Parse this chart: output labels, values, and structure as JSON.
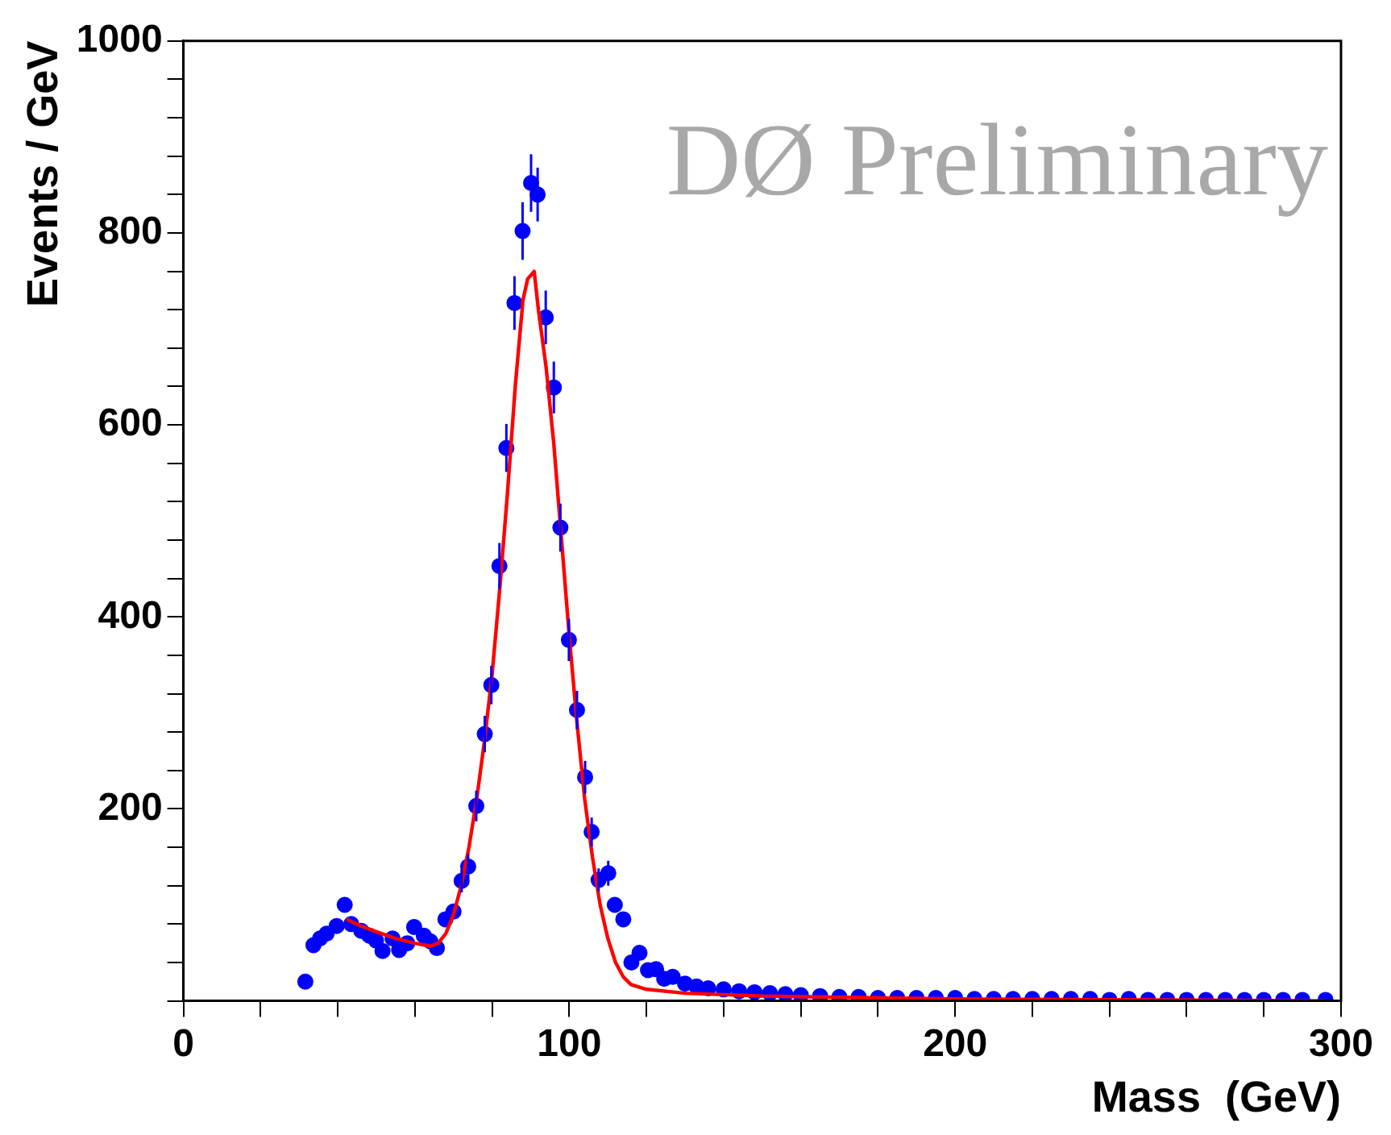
{
  "chart_data": {
    "type": "scatter",
    "xlabel": "Mass  (GeV)",
    "ylabel": "Events / GeV",
    "annotations": [
      "DØ Preliminary"
    ],
    "xlim": [
      0,
      300
    ],
    "xticks": [
      0,
      {
        "value": 20,
        "label": null
      },
      {
        "value": 40,
        "label": null
      },
      {
        "value": 60,
        "label": null
      },
      {
        "value": 80,
        "label": null
      },
      100,
      {
        "value": 120,
        "label": null
      },
      {
        "value": 140,
        "label": null
      },
      {
        "value": 160,
        "label": null
      },
      {
        "value": 180,
        "label": null
      },
      200,
      {
        "value": 220,
        "label": null
      },
      {
        "value": 240,
        "label": null
      },
      {
        "value": 260,
        "label": null
      },
      {
        "value": 280,
        "label": null
      },
      300
    ],
    "ylim": [
      0,
      1000
    ],
    "yticks": [
      {
        "value": 0,
        "label": null
      },
      {
        "value": 40,
        "label": null
      },
      {
        "value": 80,
        "label": null
      },
      {
        "value": 120,
        "label": null
      },
      {
        "value": 160,
        "label": null
      },
      200,
      {
        "value": 240,
        "label": null
      },
      {
        "value": 280,
        "label": null
      },
      {
        "value": 320,
        "label": null
      },
      {
        "value": 360,
        "label": null
      },
      400,
      {
        "value": 440,
        "label": null
      },
      {
        "value": 480,
        "label": null
      },
      {
        "value": 520,
        "label": null
      },
      {
        "value": 560,
        "label": null
      },
      600,
      {
        "value": 640,
        "label": null
      },
      {
        "value": 680,
        "label": null
      },
      {
        "value": 720,
        "label": null
      },
      {
        "value": 760,
        "label": null
      },
      800,
      {
        "value": 840,
        "label": null
      },
      {
        "value": 880,
        "label": null
      },
      {
        "value": 920,
        "label": null
      },
      {
        "value": 960,
        "label": null
      },
      1000
    ],
    "grid": false,
    "legend": false,
    "marker": "circle",
    "series": [
      {
        "color": "#0000ff",
        "x": [
          31.6,
          33.7,
          35.4,
          37.1,
          39.7,
          41.8,
          43.5,
          46.1,
          48.2,
          49.9,
          51.6,
          54.2,
          55.9,
          58.0,
          59.8,
          62.3,
          64.0,
          65.7,
          67.9,
          70.0,
          72.1,
          73.8,
          75.9,
          78.1,
          79.8,
          81.9,
          83.7,
          85.8,
          87.9,
          90.1,
          91.8,
          93.9,
          96.0,
          97.7,
          99.9,
          102.0,
          104.1,
          105.8,
          107.6,
          110.1,
          111.8,
          114.0,
          116.1,
          118.2,
          120.4,
          122.5,
          124.6,
          126.8,
          130,
          133,
          136,
          140,
          144,
          148,
          152,
          156,
          160,
          165,
          170,
          175,
          180,
          185,
          190,
          195,
          200,
          205,
          210,
          215,
          220,
          225,
          230,
          235,
          240,
          245,
          250,
          255,
          260,
          265,
          270,
          275,
          280,
          285,
          290,
          296
        ],
        "values": [
          20,
          58,
          65,
          70,
          78,
          100,
          80,
          73,
          68,
          63,
          52,
          65,
          53,
          60,
          77,
          68,
          62,
          55,
          85,
          93,
          125,
          140,
          203,
          278,
          329,
          453,
          576,
          727,
          802,
          852,
          840,
          712,
          639,
          493,
          376,
          303,
          233,
          176,
          126,
          133,
          100,
          85,
          40,
          50,
          32,
          33,
          23,
          25,
          18,
          15,
          13,
          12,
          10,
          9,
          8,
          7,
          6,
          5,
          4,
          4,
          3,
          3,
          3,
          3,
          3,
          2,
          2,
          2,
          2,
          2,
          2,
          2,
          1,
          2,
          1,
          1,
          1,
          1,
          1,
          1,
          1,
          1,
          1,
          1
        ],
        "errors": [
          null,
          null,
          null,
          null,
          null,
          null,
          null,
          null,
          null,
          null,
          null,
          null,
          null,
          null,
          null,
          null,
          null,
          null,
          null,
          null,
          12,
          13,
          16,
          19,
          20,
          24,
          25,
          28,
          30,
          30,
          28,
          28,
          27,
          25,
          22,
          20,
          17,
          15,
          12,
          13,
          null,
          null,
          null,
          null,
          null,
          null,
          null,
          null,
          null,
          null,
          null,
          null,
          null,
          null,
          null,
          null,
          null,
          null,
          null,
          null,
          null,
          null,
          null,
          null,
          null,
          null,
          null,
          null,
          null,
          null,
          null,
          null,
          null,
          null,
          null,
          null,
          null,
          null,
          null,
          null,
          null,
          null,
          null,
          null
        ]
      },
      {
        "type": "line",
        "color": "#ff0000",
        "marker": "none",
        "line_style": "solid",
        "x": [
          42.3,
          46,
          50,
          55,
          60,
          64,
          66,
          68,
          70,
          72,
          74,
          76,
          78,
          80,
          82,
          84,
          86,
          88,
          89.2,
          90.9,
          92,
          94,
          96,
          98,
          100,
          102,
          104,
          106,
          108,
          110,
          112,
          114,
          116,
          120,
          130,
          150,
          200,
          250,
          296
        ],
        "values": [
          85,
          78,
          72,
          65,
          60,
          57,
          60,
          70,
          90,
          120,
          160,
          210,
          270,
          340,
          430,
          530,
          640,
          730,
          752,
          760,
          720,
          660,
          580,
          480,
          380,
          290,
          210,
          150,
          100,
          65,
          40,
          25,
          17,
          12,
          8,
          5,
          2,
          1,
          0
        ]
      }
    ]
  }
}
